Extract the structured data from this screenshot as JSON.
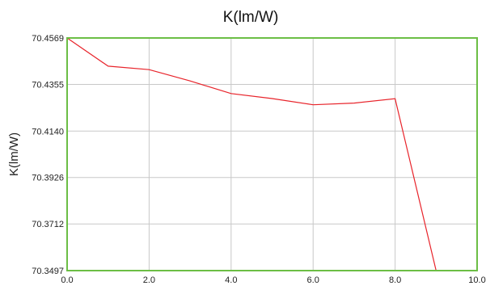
{
  "chart_data": {
    "type": "line",
    "title": "K(lm/W)",
    "xlabel": "",
    "ylabel": "K(lm/W)",
    "xlim": [
      0.0,
      10.0
    ],
    "ylim": [
      70.3497,
      70.4569
    ],
    "x_ticks": [
      "0.0",
      "2.0",
      "4.0",
      "6.0",
      "8.0",
      "10.0"
    ],
    "y_ticks": [
      "70.3497",
      "70.3712",
      "70.3926",
      "70.4140",
      "70.4355",
      "70.4569"
    ],
    "grid": true,
    "series": [
      {
        "color": "#e8232a",
        "x": [
          0.0,
          1.0,
          2.0,
          3.0,
          4.0,
          5.0,
          6.0,
          7.0,
          8.0,
          9.0
        ],
        "y": [
          70.4569,
          70.4439,
          70.4423,
          70.4371,
          70.4313,
          70.429,
          70.4261,
          70.4269,
          70.4289,
          70.3497
        ]
      }
    ],
    "colors": {
      "frame": "#6cbe45",
      "grid": "#c8c8c8"
    }
  }
}
